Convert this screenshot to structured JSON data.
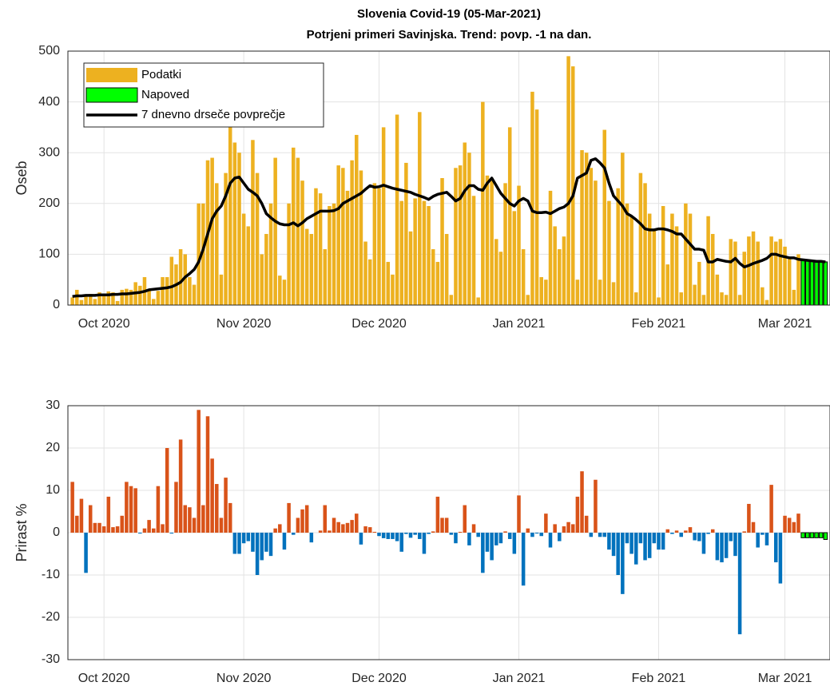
{
  "chart_data": [
    {
      "type": "bar",
      "title": "Slovenia Covid-19 (05-Mar-2021)",
      "subtitle": "Potrjeni primeri Savinjska. Trend: povp. -1 na dan.",
      "ylabel": "Oseb",
      "xlim": [
        -1,
        168
      ],
      "ylim": [
        0,
        500
      ],
      "xticks": [
        {
          "value": 7,
          "label": "Oct 2020"
        },
        {
          "value": 38,
          "label": "Nov 2020"
        },
        {
          "value": 68,
          "label": "Dec 2020"
        },
        {
          "value": 99,
          "label": "Jan 2021"
        },
        {
          "value": 130,
          "label": "Feb 2021"
        },
        {
          "value": 158,
          "label": "Mar 2021"
        }
      ],
      "yticks": [
        0,
        100,
        200,
        300,
        400,
        500
      ],
      "grid": true,
      "legend": "northwest",
      "x": [
        0,
        1,
        2,
        3,
        4,
        5,
        6,
        7,
        8,
        9,
        10,
        11,
        12,
        13,
        14,
        15,
        16,
        17,
        18,
        19,
        20,
        21,
        22,
        23,
        24,
        25,
        26,
        27,
        28,
        29,
        30,
        31,
        32,
        33,
        34,
        35,
        36,
        37,
        38,
        39,
        40,
        41,
        42,
        43,
        44,
        45,
        46,
        47,
        48,
        49,
        50,
        51,
        52,
        53,
        54,
        55,
        56,
        57,
        58,
        59,
        60,
        61,
        62,
        63,
        64,
        65,
        66,
        67,
        68,
        69,
        70,
        71,
        72,
        73,
        74,
        75,
        76,
        77,
        78,
        79,
        80,
        81,
        82,
        83,
        84,
        85,
        86,
        87,
        88,
        89,
        90,
        91,
        92,
        93,
        94,
        95,
        96,
        97,
        98,
        99,
        100,
        101,
        102,
        103,
        104,
        105,
        106,
        107,
        108,
        109,
        110,
        111,
        112,
        113,
        114,
        115,
        116,
        117,
        118,
        119,
        120,
        121,
        122,
        123,
        124,
        125,
        126,
        127,
        128,
        129,
        130,
        131,
        132,
        133,
        134,
        135,
        136,
        137,
        138,
        139,
        140,
        141,
        142,
        143,
        144,
        145,
        146,
        147,
        148,
        149,
        150,
        151,
        152,
        153,
        154,
        155,
        156,
        157,
        158,
        159,
        160,
        161,
        162,
        163,
        164,
        165,
        166,
        167
      ],
      "series": [
        {
          "name": "Podatki",
          "color": "#edb120",
          "values": [
            15,
            30,
            10,
            18,
            22,
            12,
            25,
            20,
            27,
            25,
            8,
            30,
            32,
            30,
            45,
            38,
            55,
            30,
            12,
            28,
            55,
            55,
            95,
            80,
            110,
            100,
            55,
            40,
            200,
            200,
            285,
            290,
            240,
            60,
            260,
            350,
            320,
            300,
            180,
            155,
            325,
            260,
            100,
            140,
            200,
            290,
            58,
            50,
            200,
            310,
            290,
            245,
            150,
            140,
            230,
            220,
            110,
            195,
            200,
            275,
            270,
            225,
            285,
            335,
            265,
            125,
            90,
            240,
            230,
            350,
            85,
            60,
            375,
            205,
            280,
            145,
            210,
            380,
            205,
            195,
            110,
            85,
            250,
            140,
            20,
            270,
            275,
            320,
            300,
            215,
            15,
            400,
            255,
            250,
            130,
            105,
            240,
            350,
            185,
            235,
            110,
            20,
            420,
            385,
            55,
            50,
            225,
            155,
            110,
            135,
            490,
            470,
            50,
            305,
            300,
            270,
            245,
            50,
            345,
            205,
            45,
            230,
            300,
            200,
            175,
            25,
            260,
            240,
            180,
            150,
            15,
            195,
            80,
            180,
            155,
            25,
            200,
            180,
            40,
            85,
            20,
            175,
            140,
            60,
            25,
            20,
            130,
            125,
            20,
            105,
            135,
            145,
            125,
            35,
            10,
            135,
            125,
            130,
            115,
            95,
            30,
            100,
            null,
            null,
            null,
            null,
            null,
            null
          ]
        },
        {
          "name": "Napoved",
          "color": "#00ff00",
          "x": [
            162,
            163,
            164,
            165,
            166,
            167
          ],
          "values": [
            89,
            88,
            87,
            86,
            86,
            85
          ]
        },
        {
          "name": "7 dnevno drseče povprečje",
          "type": "line",
          "color": "#000000",
          "values": [
            17,
            18,
            18,
            19,
            19,
            19,
            20,
            20,
            20,
            21,
            21,
            22,
            22,
            23,
            24,
            25,
            27,
            30,
            31,
            32,
            33,
            34,
            36,
            40,
            45,
            55,
            62,
            70,
            85,
            110,
            140,
            170,
            185,
            195,
            215,
            240,
            250,
            252,
            240,
            228,
            222,
            215,
            200,
            180,
            172,
            165,
            160,
            158,
            158,
            162,
            156,
            162,
            170,
            175,
            180,
            185,
            185,
            185,
            186,
            190,
            200,
            205,
            210,
            215,
            220,
            228,
            235,
            232,
            233,
            236,
            233,
            230,
            228,
            226,
            224,
            222,
            218,
            215,
            212,
            208,
            214,
            218,
            220,
            222,
            214,
            205,
            210,
            225,
            235,
            235,
            228,
            226,
            240,
            250,
            235,
            220,
            210,
            200,
            195,
            205,
            210,
            205,
            185,
            182,
            182,
            183,
            180,
            185,
            190,
            193,
            200,
            215,
            250,
            255,
            260,
            285,
            288,
            280,
            270,
            240,
            215,
            205,
            195,
            180,
            175,
            168,
            160,
            150,
            148,
            148,
            150,
            150,
            148,
            145,
            140,
            140,
            130,
            120,
            110,
            110,
            108,
            85,
            85,
            90,
            88,
            86,
            85,
            92,
            82,
            75,
            78,
            82,
            85,
            88,
            92,
            100,
            100,
            97,
            95,
            93,
            93,
            90,
            89,
            88,
            87,
            86,
            86,
            85
          ]
        }
      ]
    },
    {
      "type": "bar",
      "ylabel": "Prirast %",
      "xlim": [
        -1,
        168
      ],
      "ylim": [
        -30,
        30
      ],
      "xticks": [
        {
          "value": 7,
          "label": "Oct 2020"
        },
        {
          "value": 38,
          "label": "Nov 2020"
        },
        {
          "value": 68,
          "label": "Dec 2020"
        },
        {
          "value": 99,
          "label": "Jan 2021"
        },
        {
          "value": 130,
          "label": "Feb 2021"
        },
        {
          "value": 158,
          "label": "Mar 2021"
        }
      ],
      "yticks": [
        -30,
        -20,
        -10,
        0,
        10,
        20,
        30
      ],
      "grid": true,
      "x": [
        0,
        1,
        2,
        3,
        4,
        5,
        6,
        7,
        8,
        9,
        10,
        11,
        12,
        13,
        14,
        15,
        16,
        17,
        18,
        19,
        20,
        21,
        22,
        23,
        24,
        25,
        26,
        27,
        28,
        29,
        30,
        31,
        32,
        33,
        34,
        35,
        36,
        37,
        38,
        39,
        40,
        41,
        42,
        43,
        44,
        45,
        46,
        47,
        48,
        49,
        50,
        51,
        52,
        53,
        54,
        55,
        56,
        57,
        58,
        59,
        60,
        61,
        62,
        63,
        64,
        65,
        66,
        67,
        68,
        69,
        70,
        71,
        72,
        73,
        74,
        75,
        76,
        77,
        78,
        79,
        80,
        81,
        82,
        83,
        84,
        85,
        86,
        87,
        88,
        89,
        90,
        91,
        92,
        93,
        94,
        95,
        96,
        97,
        98,
        99,
        100,
        101,
        102,
        103,
        104,
        105,
        106,
        107,
        108,
        109,
        110,
        111,
        112,
        113,
        114,
        115,
        116,
        117,
        118,
        119,
        120,
        121,
        122,
        123,
        124,
        125,
        126,
        127,
        128,
        129,
        130,
        131,
        132,
        133,
        134,
        135,
        136,
        137,
        138,
        139,
        140,
        141,
        142,
        143,
        144,
        145,
        146,
        147,
        148,
        149,
        150,
        151,
        152,
        153,
        154,
        155,
        156,
        157,
        158,
        159,
        160,
        161,
        162,
        163,
        164,
        165,
        166,
        167
      ],
      "series": [
        {
          "colors": {
            "positive": "#d95319",
            "negative": "#0072bd"
          },
          "values": [
            12,
            4,
            8,
            -9.5,
            6.5,
            2.3,
            2.3,
            1.5,
            8.5,
            1.3,
            1.5,
            4,
            12,
            11,
            10.5,
            -0.2,
            1,
            3,
            1,
            11,
            2,
            20,
            -0.2,
            12,
            22,
            6.5,
            6,
            3.5,
            29,
            6.5,
            27.5,
            17.5,
            11.5,
            3.5,
            13,
            7,
            -5,
            -5,
            -2.5,
            -2,
            -4.5,
            -10,
            -6.5,
            -4.5,
            -5.5,
            1,
            2,
            -4,
            7,
            -0.5,
            3.5,
            5.5,
            6.5,
            -2.3,
            0,
            0.5,
            6.5,
            0.5,
            3.5,
            2.5,
            2,
            2.3,
            3,
            4.5,
            -2.8,
            1.5,
            1.3,
            0.2,
            -0.8,
            -1.3,
            -1.5,
            -1.5,
            -2,
            -4.5,
            -0.3,
            -1.2,
            -0.5,
            -1.5,
            -5,
            -0.3,
            0.3,
            8.5,
            3.5,
            3.5,
            -0.5,
            -2.5,
            0.2,
            6.5,
            -3,
            2,
            -1,
            -9.5,
            -4.5,
            -6.5,
            -3,
            -2.5,
            0.3,
            -1.5,
            -5,
            8.8,
            -12.5,
            1,
            -1,
            -0.2,
            -0.8,
            4.5,
            -3.5,
            2,
            -2,
            1.5,
            2.5,
            2,
            8.5,
            14.5,
            4,
            -1,
            12.5,
            -1,
            -1,
            -4,
            -5.5,
            -10,
            -14.5,
            -2.5,
            -5,
            -7.5,
            -2.5,
            -6.5,
            -6,
            -2.5,
            -4,
            -4,
            0.8,
            -0.3,
            0.5,
            -1,
            0.5,
            1.3,
            -1.8,
            -2,
            -5,
            -0.3,
            0.8,
            -6.5,
            -7,
            -6,
            -2,
            -5.5,
            -24,
            0.3,
            6.8,
            2.5,
            -3.5,
            -0.5,
            -3,
            11.3,
            -7,
            -12,
            4,
            3.5,
            2.5,
            4.5,
            null,
            null,
            null,
            null,
            null,
            null
          ]
        },
        {
          "color": "#00ff00",
          "x": [
            162,
            163,
            164,
            165,
            166,
            167
          ],
          "values": [
            -1.2,
            -1.2,
            -1.2,
            -1.2,
            -1.2,
            -1.6
          ]
        }
      ]
    }
  ]
}
